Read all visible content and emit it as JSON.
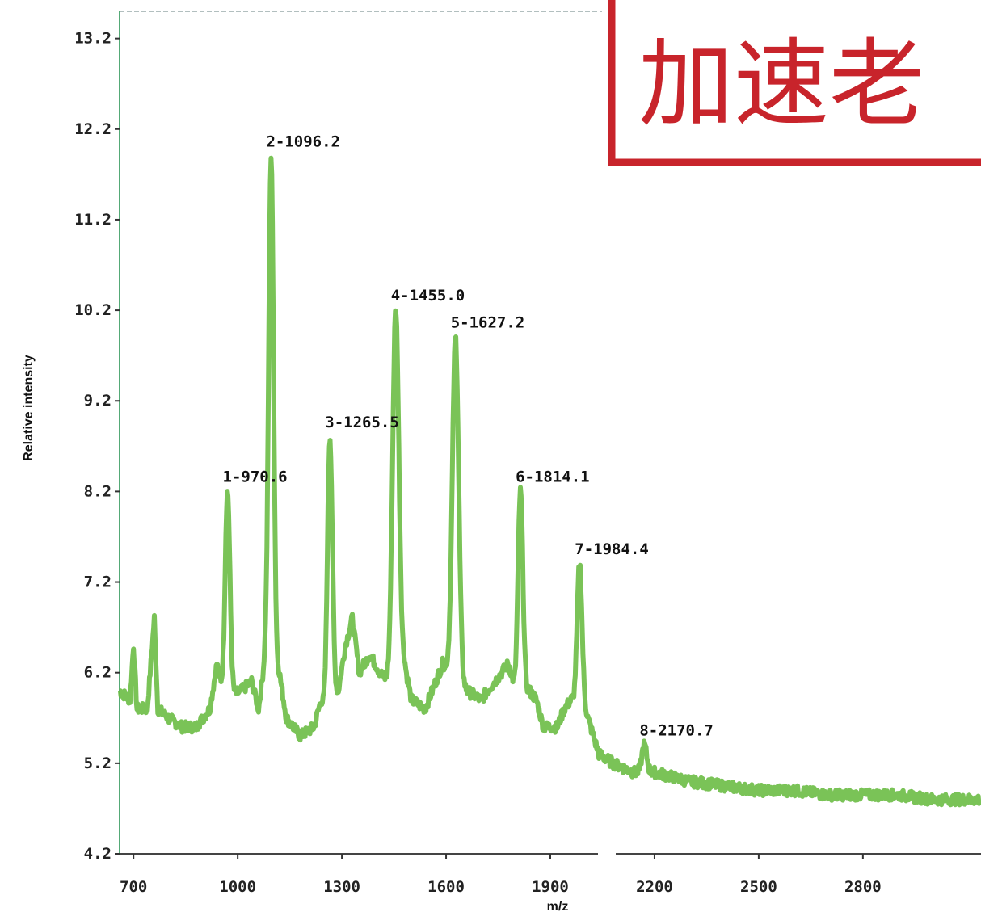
{
  "chart_data": {
    "type": "line",
    "xlabel": "m/z",
    "ylabel": "Relative intensity",
    "xlim": [
      660,
      3140
    ],
    "ylim": [
      4.2,
      13.5
    ],
    "x_ticks": [
      "700",
      "1000",
      "1300",
      "1600",
      "1900",
      "2200",
      "2500",
      "2800"
    ],
    "x_tick_values": [
      700,
      1000,
      1300,
      1600,
      1900,
      2200,
      2500,
      2800
    ],
    "y_ticks": [
      "4.2",
      "5.2",
      "6.2",
      "7.2",
      "8.2",
      "9.2",
      "10.2",
      "11.2",
      "12.2",
      "13.2"
    ],
    "y_tick_values": [
      4.2,
      5.2,
      6.2,
      7.2,
      8.2,
      9.2,
      10.2,
      11.2,
      12.2,
      13.2
    ],
    "series_color": "#6cbd45",
    "peaks": [
      {
        "label": "1-970.6",
        "x": 970.6,
        "y": 8.2
      },
      {
        "label": "2-1096.2",
        "x": 1096.2,
        "y": 11.9
      },
      {
        "label": "3-1265.5",
        "x": 1265.5,
        "y": 8.8
      },
      {
        "label": "4-1455.0",
        "x": 1455.0,
        "y": 10.2
      },
      {
        "label": "5-1627.2",
        "x": 1627.2,
        "y": 9.9
      },
      {
        "label": "6-1814.1",
        "x": 1814.1,
        "y": 8.2
      },
      {
        "label": "7-1984.4",
        "x": 1984.4,
        "y": 7.4
      },
      {
        "label": "8-2170.7",
        "x": 2170.7,
        "y": 5.4
      }
    ],
    "baseline": [
      [
        660,
        6.0
      ],
      [
        690,
        5.9
      ],
      [
        700,
        6.5
      ],
      [
        710,
        5.8
      ],
      [
        740,
        5.8
      ],
      [
        760,
        6.8
      ],
      [
        770,
        5.8
      ],
      [
        800,
        5.7
      ],
      [
        840,
        5.6
      ],
      [
        880,
        5.6
      ],
      [
        920,
        5.8
      ],
      [
        940,
        6.3
      ],
      [
        960,
        5.9
      ],
      [
        1010,
        6.0
      ],
      [
        1040,
        6.1
      ],
      [
        1060,
        5.8
      ],
      [
        1080,
        6.4
      ],
      [
        1120,
        6.2
      ],
      [
        1140,
        5.7
      ],
      [
        1180,
        5.5
      ],
      [
        1220,
        5.6
      ],
      [
        1240,
        5.9
      ],
      [
        1250,
        5.8
      ],
      [
        1290,
        6.0
      ],
      [
        1310,
        6.5
      ],
      [
        1330,
        6.8
      ],
      [
        1350,
        6.2
      ],
      [
        1380,
        6.4
      ],
      [
        1410,
        6.2
      ],
      [
        1430,
        6.1
      ],
      [
        1480,
        6.3
      ],
      [
        1500,
        5.9
      ],
      [
        1540,
        5.8
      ],
      [
        1570,
        6.1
      ],
      [
        1590,
        6.3
      ],
      [
        1660,
        6.0
      ],
      [
        1700,
        5.9
      ],
      [
        1740,
        6.1
      ],
      [
        1780,
        6.3
      ],
      [
        1800,
        6.0
      ],
      [
        1840,
        6.0
      ],
      [
        1860,
        5.9
      ],
      [
        1880,
        5.6
      ],
      [
        1920,
        5.6
      ],
      [
        1940,
        5.8
      ],
      [
        1960,
        5.9
      ],
      [
        2000,
        5.8
      ],
      [
        2040,
        5.3
      ],
      [
        2080,
        5.2
      ],
      [
        2140,
        5.1
      ],
      [
        2200,
        5.1
      ],
      [
        2300,
        5.0
      ],
      [
        2400,
        4.95
      ],
      [
        2500,
        4.9
      ],
      [
        2600,
        4.9
      ],
      [
        2700,
        4.85
      ],
      [
        2800,
        4.85
      ],
      [
        2900,
        4.85
      ],
      [
        3000,
        4.8
      ],
      [
        3140,
        4.8
      ]
    ]
  },
  "stamp": {
    "text": "加速老"
  }
}
